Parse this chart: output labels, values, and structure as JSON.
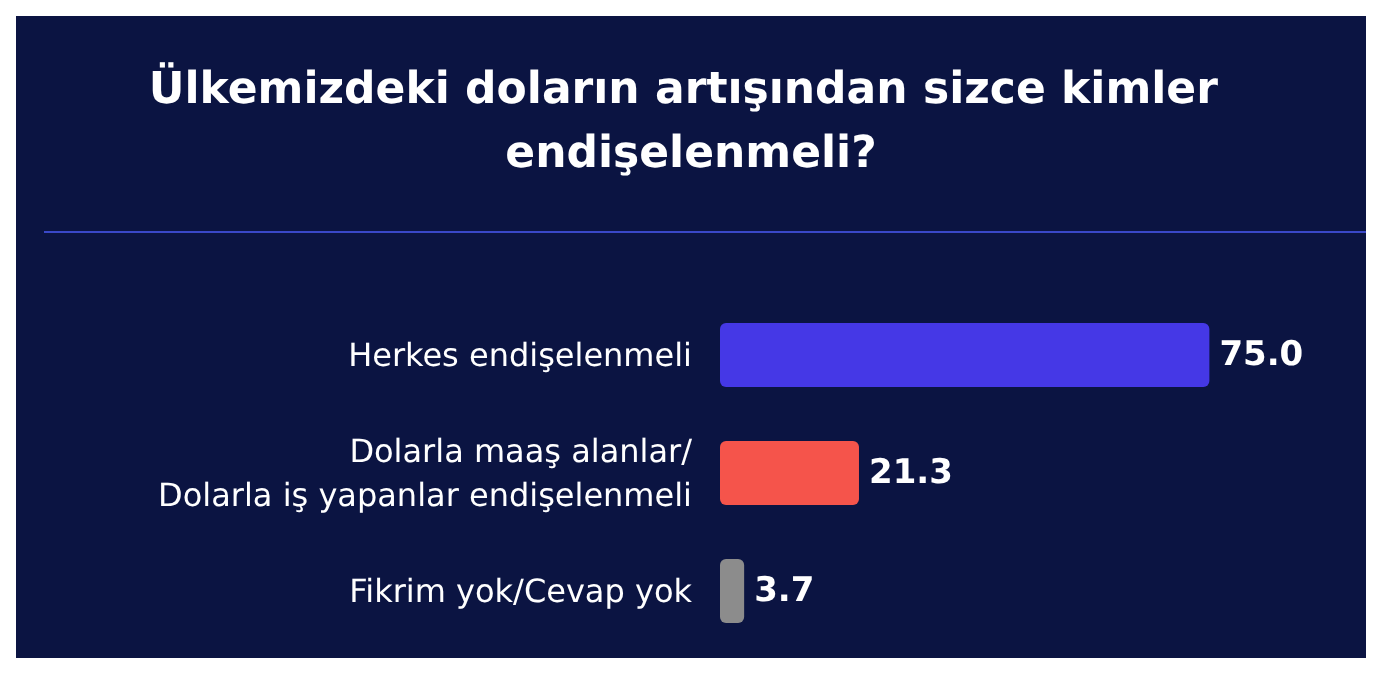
{
  "chart_data": {
    "type": "bar",
    "orientation": "horizontal",
    "title": "Ülkemizdeki doların artışından sizce kimler endişelenmeli?",
    "categories": [
      "Herkes endişelenmeli",
      "Dolarla maaş alanlar/\nDolarla iş yapanlar endişelenmeli",
      "Fikrim yok/Cevap yok"
    ],
    "values": [
      75.0,
      21.3,
      3.7
    ],
    "colors": [
      "#4538e6",
      "#f5544b",
      "#8c8c8c"
    ],
    "value_labels": [
      "75.0",
      "21.3",
      "3.7"
    ],
    "grid": false
  }
}
